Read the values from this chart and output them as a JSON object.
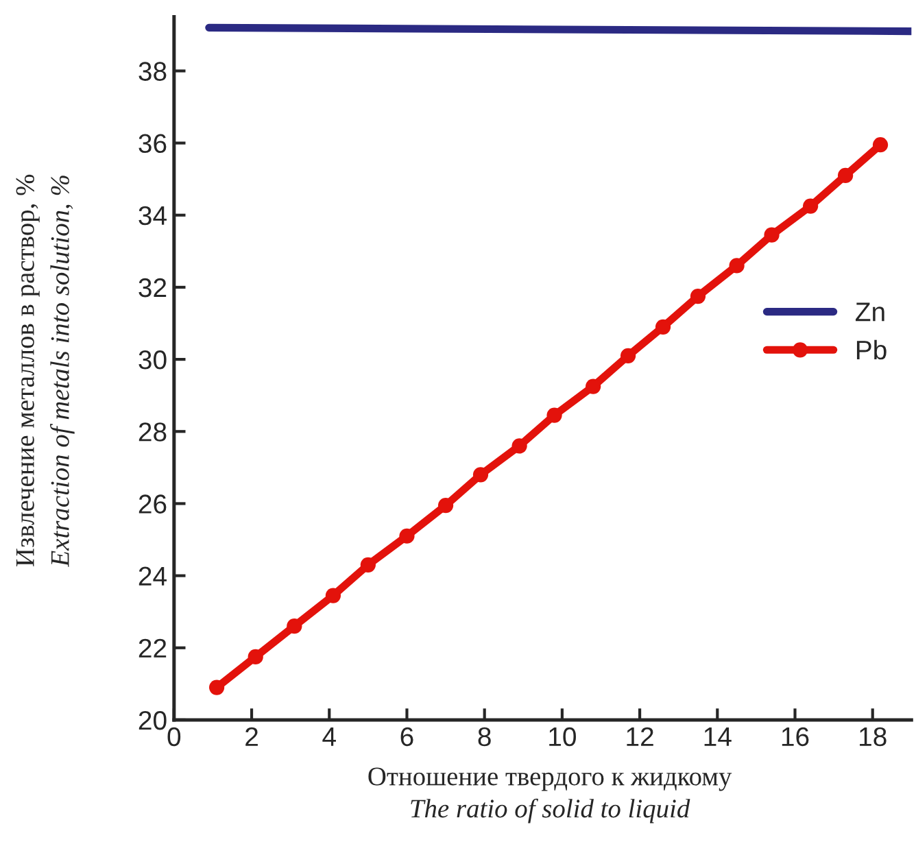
{
  "chart_data": {
    "type": "line",
    "xlabel": "Отношение твердого к жидкому\nThe ratio of solid to liquid",
    "ylabel": "Извлечение металлов в раствор, %\nExtraction of metals into solution, %",
    "xlim": [
      0,
      19
    ],
    "xticks": [
      0,
      2,
      4,
      6,
      8,
      10,
      12,
      14,
      16,
      18
    ],
    "ylim": [
      20,
      39.5
    ],
    "yticks": [
      20,
      22,
      24,
      26,
      28,
      30,
      32,
      34,
      36,
      38
    ],
    "grid": false,
    "legend": "right",
    "series": [
      {
        "name": "Zn",
        "color": "#2b2a83",
        "marker": "none",
        "x": [
          0.9,
          19
        ],
        "values": [
          39.2,
          39.1
        ]
      },
      {
        "name": "Pb",
        "color": "#e3120b",
        "marker": "circle",
        "x": [
          1.1,
          2.1,
          3.1,
          4.1,
          5.0,
          6.0,
          7.0,
          7.9,
          8.9,
          9.8,
          10.8,
          11.7,
          12.6,
          13.5,
          14.5,
          15.4,
          16.4,
          17.3,
          18.2
        ],
        "values": [
          20.9,
          21.75,
          22.6,
          23.45,
          24.3,
          25.1,
          25.95,
          26.8,
          27.6,
          28.45,
          29.25,
          30.1,
          30.9,
          31.75,
          32.6,
          33.45,
          34.25,
          35.1,
          35.95
        ]
      }
    ]
  }
}
